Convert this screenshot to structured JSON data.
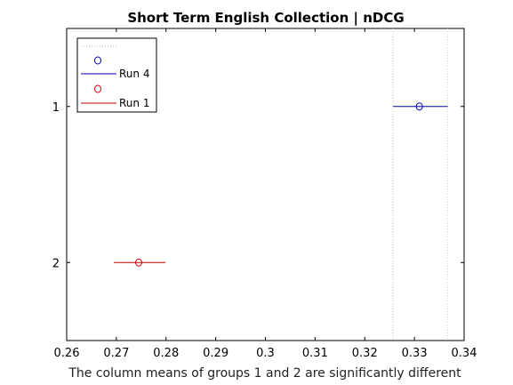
{
  "chart_data": {
    "type": "multiple-comparison",
    "title": "Short Term English Collection | nDCG",
    "xlabel": "The column means of groups 1 and 2 are significantly different",
    "ylabel": "",
    "xlim": [
      0.26,
      0.34
    ],
    "xticks": [
      0.26,
      0.27,
      0.28,
      0.29,
      0.3,
      0.31,
      0.32,
      0.33,
      0.34
    ],
    "xtick_labels": [
      "0.26",
      "0.27",
      "0.28",
      "0.29",
      "0.3",
      "0.31",
      "0.32",
      "0.33",
      "0.34"
    ],
    "ylim": [
      0.5,
      2.5
    ],
    "ytick_labels": [
      "1",
      "2"
    ],
    "reference_lines": [
      0.3257,
      0.3367
    ],
    "legend_position": "top-left",
    "series": [
      {
        "name": "Run 4",
        "group": 1,
        "mean": 0.331,
        "lower": 0.3257,
        "upper": 0.3367,
        "color": "#0000b0"
      },
      {
        "name": "Run 1",
        "group": 2,
        "mean": 0.2745,
        "lower": 0.2695,
        "upper": 0.2799,
        "color": "#cc0000"
      }
    ]
  }
}
